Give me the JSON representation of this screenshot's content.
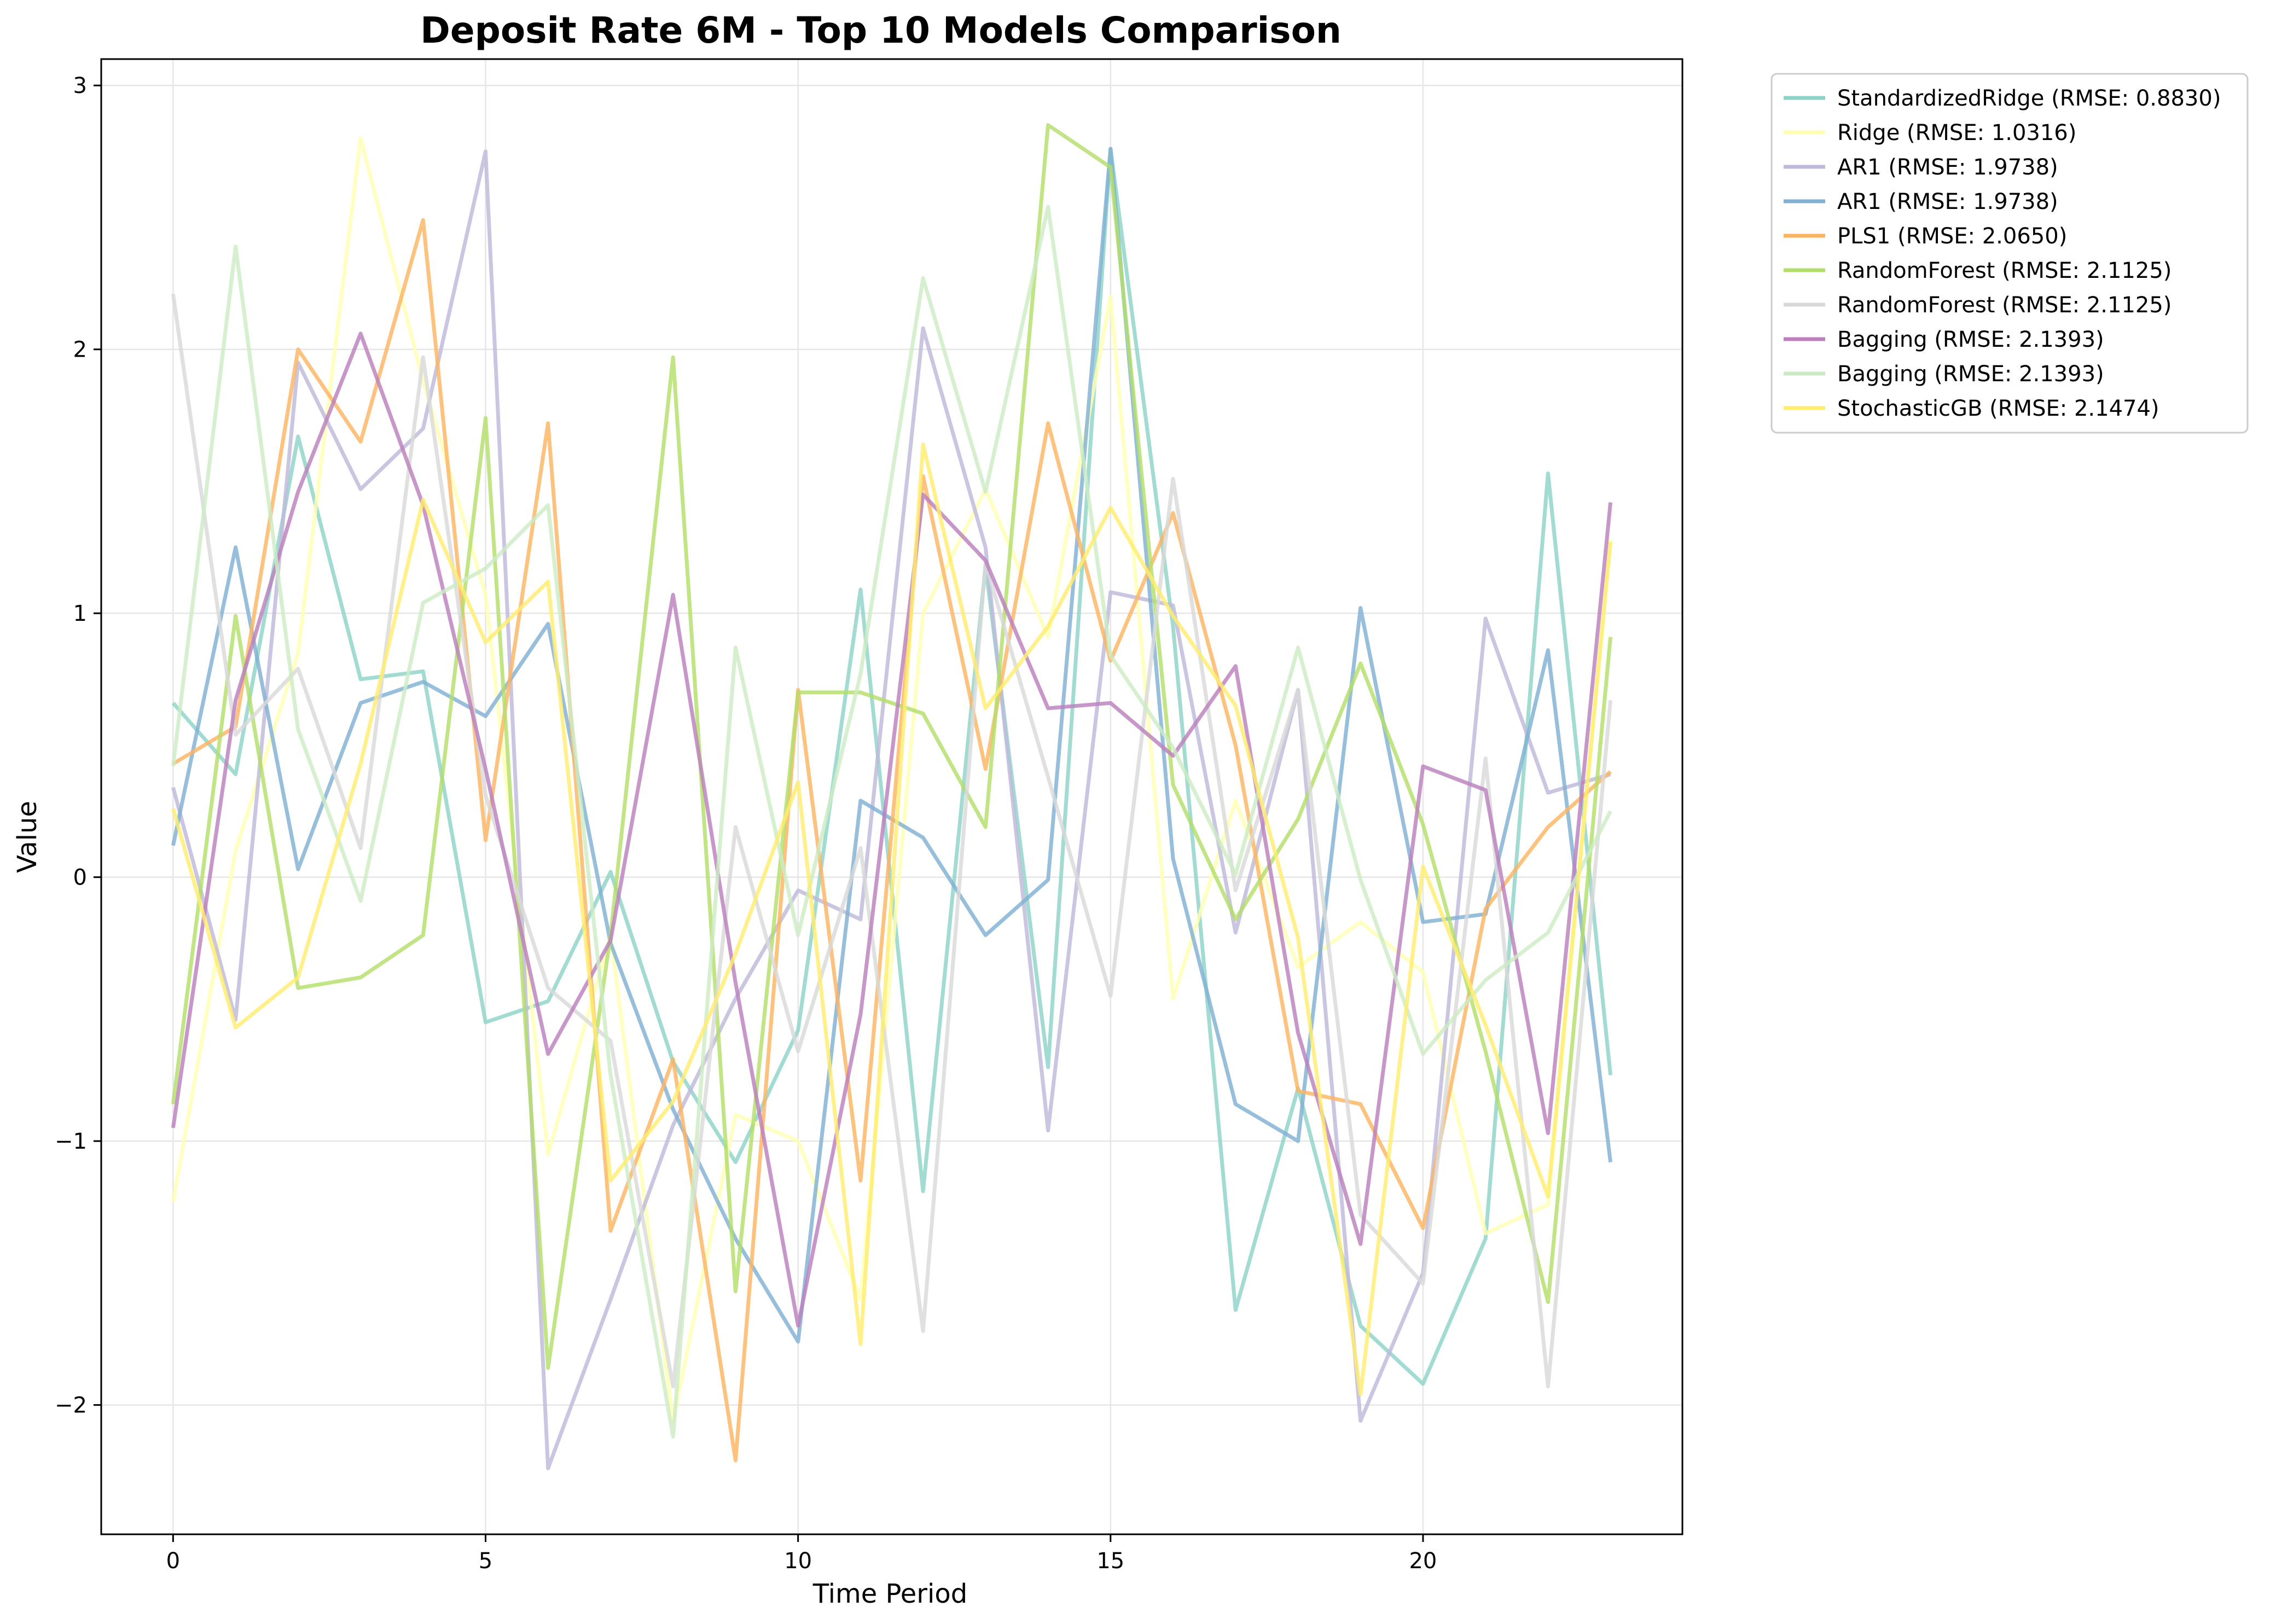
{
  "chart_data": {
    "type": "line",
    "title": "Deposit Rate 6M - Top 10 Models Comparison",
    "xlabel": "Time Period",
    "ylabel": "Value",
    "xlim": [
      -1.15,
      24.15
    ],
    "ylim": [
      -2.49,
      3.1
    ],
    "xticks": [
      0,
      5,
      10,
      15,
      20
    ],
    "yticks": [
      -2,
      -1,
      0,
      1,
      2,
      3
    ],
    "ytick_labels": [
      "−2",
      "−1",
      "0",
      "1",
      "2",
      "3"
    ],
    "grid": true,
    "legend_position": "outside-top-right",
    "x": [
      0,
      1,
      2,
      3,
      4,
      5,
      6,
      7,
      8,
      9,
      10,
      11,
      12,
      13,
      14,
      15,
      16,
      17,
      18,
      19,
      20,
      21,
      22,
      23
    ],
    "series": [
      {
        "name": "StandardizedRidge (RMSE: 0.8830)",
        "color": "#8dd3c7",
        "values": [
          0.66,
          0.39,
          1.67,
          0.75,
          0.78,
          -0.55,
          -0.47,
          0.02,
          -0.7,
          -1.08,
          -0.58,
          1.09,
          -1.19,
          1.18,
          -0.72,
          2.76,
          0.95,
          -1.64,
          -0.8,
          -1.7,
          -1.92,
          -1.37,
          1.53,
          -0.75
        ]
      },
      {
        "name": "Ridge (RMSE: 1.0316)",
        "color": "#ffffb3",
        "values": [
          -1.23,
          0.1,
          0.85,
          2.8,
          1.88,
          1.07,
          -1.05,
          -0.22,
          -2.06,
          -0.9,
          -1.0,
          -1.6,
          1.0,
          1.47,
          0.91,
          2.2,
          -0.46,
          0.29,
          -0.34,
          -0.17,
          -0.36,
          -1.35,
          -1.24,
          1.28
        ]
      },
      {
        "name": "AR1 (RMSE: 1.9738)",
        "color": "#bebada",
        "values": [
          0.34,
          -0.54,
          1.95,
          1.47,
          1.7,
          2.75,
          -2.24,
          -1.6,
          -0.94,
          -0.46,
          -0.05,
          -0.16,
          2.08,
          1.25,
          -0.96,
          1.08,
          1.03,
          -0.21,
          0.71,
          -2.06,
          -1.5,
          0.98,
          0.32,
          0.39
        ]
      },
      {
        "name": "AR1 (RMSE: 1.9738)",
        "color": "#80b1d3",
        "values": [
          0.12,
          1.25,
          0.03,
          0.66,
          0.74,
          0.61,
          0.96,
          -0.25,
          -0.88,
          -1.37,
          -1.76,
          0.29,
          0.15,
          -0.22,
          -0.01,
          2.76,
          0.07,
          -0.86,
          -1.0,
          1.02,
          -0.17,
          -0.14,
          0.86,
          -1.08
        ]
      },
      {
        "name": "PLS1 (RMSE: 2.0650)",
        "color": "#fdb462",
        "values": [
          0.43,
          0.57,
          2.0,
          1.65,
          2.49,
          0.14,
          1.72,
          -1.34,
          -0.69,
          -2.21,
          0.71,
          -1.15,
          1.52,
          0.41,
          1.72,
          0.82,
          1.38,
          0.5,
          -0.81,
          -0.86,
          -1.33,
          -0.12,
          0.19,
          0.4
        ]
      },
      {
        "name": "RandomForest (RMSE: 2.1125)",
        "color": "#b3de69",
        "values": [
          -0.86,
          0.99,
          -0.42,
          -0.38,
          -0.22,
          1.74,
          -1.86,
          -0.22,
          1.97,
          -1.57,
          0.7,
          0.7,
          0.62,
          0.19,
          2.85,
          2.69,
          0.35,
          -0.16,
          0.22,
          0.81,
          0.2,
          -0.66,
          -1.61,
          0.91
        ]
      },
      {
        "name": "RandomForest (RMSE: 2.1125)",
        "color": "#d9d9d9",
        "values": [
          2.21,
          0.54,
          0.79,
          0.11,
          1.97,
          0.31,
          -0.42,
          -0.62,
          -1.93,
          0.19,
          -0.66,
          0.11,
          -1.72,
          1.19,
          0.38,
          -0.45,
          1.51,
          -0.05,
          0.71,
          -1.28,
          -1.54,
          0.45,
          -1.93,
          0.67
        ]
      },
      {
        "name": "Bagging (RMSE: 2.1393)",
        "color": "#bc80bd",
        "values": [
          -0.95,
          0.67,
          1.46,
          2.06,
          1.41,
          0.41,
          -0.67,
          -0.24,
          1.07,
          -0.4,
          -1.7,
          -0.52,
          1.45,
          1.2,
          0.64,
          0.66,
          0.46,
          0.8,
          -0.59,
          -1.39,
          0.42,
          0.33,
          -0.97,
          1.42
        ]
      },
      {
        "name": "Bagging (RMSE: 2.1393)",
        "color": "#ccebc5",
        "values": [
          0.42,
          2.39,
          0.56,
          -0.09,
          1.04,
          1.17,
          1.41,
          -0.75,
          -2.12,
          0.87,
          -0.22,
          0.77,
          2.27,
          1.46,
          2.54,
          0.84,
          0.49,
          0.01,
          0.87,
          -0.01,
          -0.67,
          -0.39,
          -0.21,
          0.25
        ]
      },
      {
        "name": "StochasticGB (RMSE: 2.1474)",
        "color": "#ffed6f",
        "values": [
          0.26,
          -0.57,
          -0.38,
          0.43,
          1.43,
          0.89,
          1.12,
          -1.15,
          -0.85,
          -0.29,
          0.36,
          -1.77,
          1.64,
          0.64,
          0.95,
          1.4,
          0.99,
          0.65,
          -0.23,
          -1.96,
          0.04,
          -0.56,
          -1.21,
          1.27
        ]
      }
    ]
  }
}
